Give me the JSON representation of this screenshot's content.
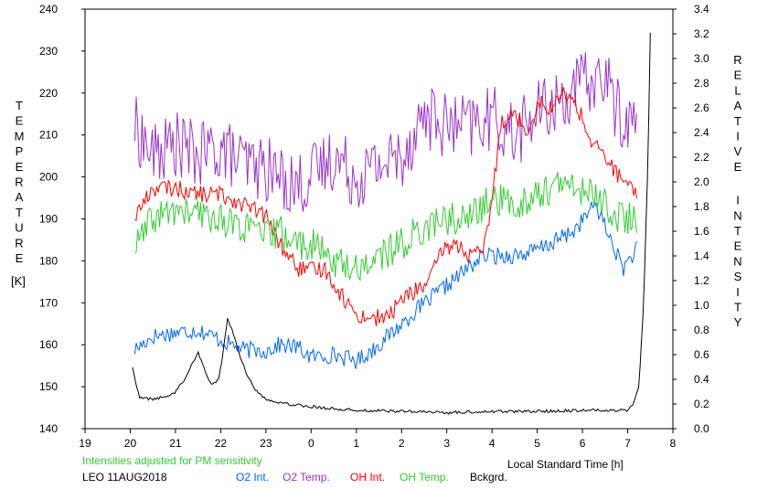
{
  "chart_data": {
    "type": "line",
    "title": "",
    "xlabel": "Local Standard Time [h]",
    "ylabel_left": "TEMPERATURE",
    "ylabel_left_unit": "[K]",
    "ylabel_right": "RELATIVE INTENSITY",
    "x_ticks": [
      "19",
      "20",
      "21",
      "22",
      "23",
      "0",
      "1",
      "2",
      "3",
      "4",
      "5",
      "6",
      "7",
      "8"
    ],
    "xlim": [
      19,
      32
    ],
    "y_left": {
      "ylim": [
        140,
        240
      ],
      "ticks": [
        "140",
        "150",
        "160",
        "170",
        "180",
        "190",
        "200",
        "210",
        "220",
        "230",
        "240"
      ]
    },
    "y_right": {
      "ylim": [
        0.0,
        3.4
      ],
      "ticks": [
        "0.0",
        "0.2",
        "0.4",
        "0.6",
        "0.8",
        "1.0",
        "1.2",
        "1.4",
        "1.6",
        "1.8",
        "2.0",
        "2.2",
        "2.4",
        "2.6",
        "2.8",
        "3.0",
        "3.2",
        "3.4"
      ]
    },
    "note": "Intensities adjusted for PM sensitivity",
    "station": "LEO 11AUG2018",
    "grid": false,
    "legend_position": "bottom",
    "series": [
      {
        "name": "O2 Int.",
        "axis": "right",
        "color": "#0066ff",
        "noise": 0.07,
        "x": [
          20.1,
          20.5,
          21.0,
          21.5,
          22.0,
          22.5,
          23.0,
          23.3,
          23.7,
          24.0,
          24.5,
          25.0,
          25.3,
          25.8,
          26.3,
          26.8,
          27.3,
          27.8,
          28.3,
          28.8,
          29.3,
          29.8,
          30.3,
          30.6,
          30.9,
          31.2
        ],
        "y": [
          0.64,
          0.75,
          0.78,
          0.8,
          0.72,
          0.64,
          0.63,
          0.68,
          0.66,
          0.58,
          0.6,
          0.55,
          0.62,
          0.78,
          0.95,
          1.1,
          1.25,
          1.4,
          1.4,
          1.42,
          1.5,
          1.6,
          1.82,
          1.55,
          1.3,
          1.45
        ]
      },
      {
        "name": "O2 Temp.",
        "axis": "left",
        "color": "#9933cc",
        "noise": 8,
        "x": [
          20.1,
          20.5,
          21.0,
          21.5,
          22.0,
          22.5,
          23.0,
          23.3,
          23.7,
          24.0,
          24.5,
          25.0,
          25.5,
          26.0,
          26.5,
          27.0,
          27.5,
          28.0,
          28.5,
          29.0,
          29.5,
          30.0,
          30.5,
          30.8,
          31.2
        ],
        "y": [
          212,
          205,
          208,
          205,
          207,
          203,
          202,
          200,
          198,
          200,
          205,
          200,
          203,
          205,
          215,
          212,
          212,
          214,
          210,
          215,
          218,
          222,
          224,
          215,
          212
        ]
      },
      {
        "name": "OH Int.",
        "axis": "right",
        "color": "#ff0000",
        "noise": 0.07,
        "x": [
          20.1,
          20.5,
          21.0,
          21.5,
          22.0,
          22.5,
          23.0,
          23.3,
          23.7,
          24.0,
          24.3,
          24.6,
          25.0,
          25.3,
          25.7,
          26.0,
          26.3,
          26.6,
          26.9,
          27.2,
          27.5,
          27.8,
          28.0,
          28.2,
          28.5,
          28.8,
          29.0,
          29.3,
          29.6,
          29.9,
          30.2,
          30.5,
          30.8,
          31.2
        ],
        "y": [
          1.72,
          1.95,
          1.95,
          1.9,
          1.9,
          1.82,
          1.72,
          1.5,
          1.3,
          1.28,
          1.3,
          1.12,
          0.92,
          0.9,
          0.9,
          1.05,
          1.12,
          1.18,
          1.45,
          1.5,
          1.4,
          1.42,
          1.85,
          2.5,
          2.55,
          2.4,
          2.65,
          2.6,
          2.72,
          2.6,
          2.32,
          2.2,
          2.05,
          1.88
        ]
      },
      {
        "name": "OH Temp.",
        "axis": "left",
        "color": "#33cc33",
        "noise": 4,
        "x": [
          20.1,
          20.5,
          21.0,
          21.5,
          22.0,
          22.5,
          23.0,
          23.3,
          23.7,
          24.0,
          24.5,
          25.0,
          25.5,
          26.0,
          26.5,
          27.0,
          27.5,
          28.0,
          28.5,
          29.0,
          29.5,
          30.0,
          30.5,
          30.8,
          31.2
        ],
        "y": [
          183,
          190,
          192,
          191,
          190,
          188,
          186,
          187,
          184,
          184,
          180,
          178,
          181,
          184,
          188,
          190,
          190,
          195,
          193,
          196,
          198,
          197,
          194,
          190,
          190
        ]
      },
      {
        "name": "Bckgrd.",
        "axis": "right",
        "color": "#000000",
        "noise": 0.012,
        "x": [
          20.05,
          20.2,
          20.5,
          20.8,
          21.0,
          21.2,
          21.4,
          21.5,
          21.6,
          21.8,
          21.95,
          22.05,
          22.15,
          22.25,
          22.4,
          22.6,
          22.8,
          23.0,
          23.5,
          24.0,
          24.5,
          25.0,
          26.0,
          27.0,
          28.0,
          29.0,
          30.0,
          31.0,
          31.15,
          31.25,
          31.35,
          31.45,
          31.5
        ],
        "y": [
          0.5,
          0.25,
          0.24,
          0.26,
          0.3,
          0.4,
          0.55,
          0.62,
          0.52,
          0.35,
          0.4,
          0.6,
          0.9,
          0.8,
          0.62,
          0.42,
          0.3,
          0.24,
          0.2,
          0.18,
          0.16,
          0.15,
          0.14,
          0.13,
          0.14,
          0.14,
          0.15,
          0.15,
          0.22,
          0.35,
          1.0,
          2.2,
          3.2
        ]
      }
    ]
  }
}
